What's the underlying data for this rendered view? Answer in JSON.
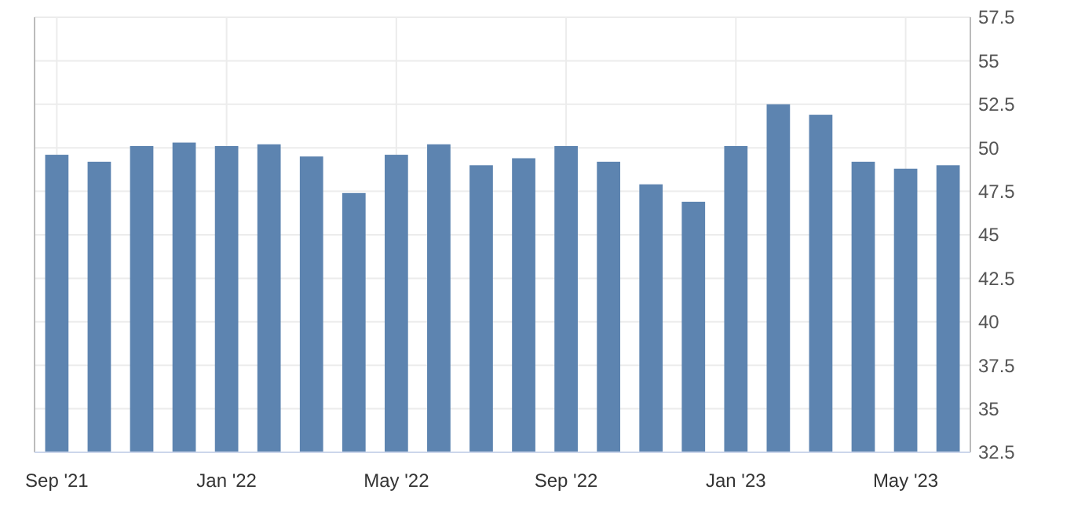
{
  "chart_data": {
    "type": "bar",
    "categories": [
      "Sep '21",
      null,
      null,
      null,
      "Jan '22",
      null,
      null,
      null,
      "May '22",
      null,
      null,
      null,
      "Sep '22",
      null,
      null,
      null,
      "Jan '23",
      null,
      null,
      null,
      "May '23",
      null
    ],
    "values": [
      49.6,
      49.2,
      50.1,
      50.3,
      50.1,
      50.2,
      49.5,
      47.4,
      49.6,
      50.2,
      49.0,
      49.4,
      50.1,
      49.2,
      47.9,
      46.9,
      50.1,
      52.5,
      51.9,
      49.2,
      48.8,
      49.0
    ],
    "color": "#5d84b0",
    "ylim": [
      32.5,
      57.5
    ],
    "yticks": [
      32.5,
      35,
      37.5,
      40,
      42.5,
      45,
      47.5,
      50,
      52.5,
      55,
      57.5
    ],
    "grid": true
  }
}
